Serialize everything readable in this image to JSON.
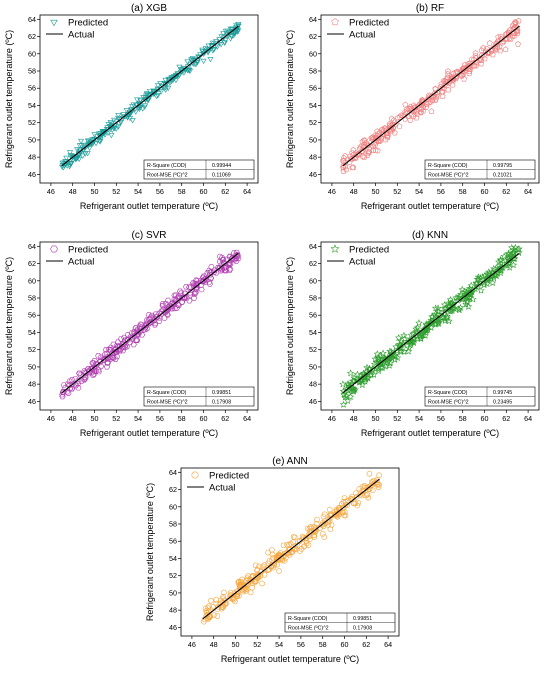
{
  "chart_data": [
    {
      "type": "scatter",
      "title": "(a) XGB",
      "xlabel": "Refrigerant outlet temperature (ºC)",
      "ylabel": "Refrigerant outlet temperature (ºC)",
      "xlim": [
        45,
        65
      ],
      "ylim": [
        45,
        64.5
      ],
      "xticks": [
        46,
        48,
        50,
        52,
        54,
        56,
        58,
        60,
        62,
        64
      ],
      "yticks": [
        46,
        48,
        50,
        52,
        54,
        56,
        58,
        60,
        62,
        64
      ],
      "grid": false,
      "legend_position": "top-left",
      "series": [
        {
          "name": "Predicted",
          "marker": "triangle-down",
          "color": "#1a9c99",
          "x_range": [
            47,
            63.2
          ],
          "spread": 0.35
        },
        {
          "name": "Actual",
          "kind": "line",
          "color": "#000000",
          "x": [
            47,
            63.2
          ],
          "y": [
            47,
            63.2
          ]
        }
      ],
      "stats": [
        {
          "label": "R-Square (COD)",
          "value": "0.99944"
        },
        {
          "label": "Root-MSE (ºC)^2",
          "value": "0.11069"
        }
      ]
    },
    {
      "type": "scatter",
      "title": "(b) RF",
      "xlabel": "Refrigerant outlet temperature (ºC)",
      "ylabel": "Refrigerant outlet temperature (ºC)",
      "xlim": [
        45,
        65
      ],
      "ylim": [
        45,
        64.5
      ],
      "xticks": [
        46,
        48,
        50,
        52,
        54,
        56,
        58,
        60,
        62,
        64
      ],
      "yticks": [
        46,
        48,
        50,
        52,
        54,
        56,
        58,
        60,
        62,
        64
      ],
      "grid": false,
      "legend_position": "top-left",
      "series": [
        {
          "name": "Predicted",
          "marker": "pentagon",
          "color": "#f08080",
          "x_range": [
            47,
            63.2
          ],
          "spread": 0.55
        },
        {
          "name": "Actual",
          "kind": "line",
          "color": "#000000",
          "x": [
            47,
            63.2
          ],
          "y": [
            47,
            63.2
          ]
        }
      ],
      "stats": [
        {
          "label": "R-Square (COD)",
          "value": "0.99795"
        },
        {
          "label": "Root-MSE (ºC)^2",
          "value": "0.21021"
        }
      ]
    },
    {
      "type": "scatter",
      "title": "(c) SVR",
      "xlabel": "Refrigerant outlet temperature (ºC)",
      "ylabel": "Refrigerant outlet temperature (ºC)",
      "xlim": [
        45,
        65
      ],
      "ylim": [
        45,
        64.5
      ],
      "xticks": [
        46,
        48,
        50,
        52,
        54,
        56,
        58,
        60,
        62,
        64
      ],
      "yticks": [
        46,
        48,
        50,
        52,
        54,
        56,
        58,
        60,
        62,
        64
      ],
      "grid": false,
      "legend_position": "top-left",
      "series": [
        {
          "name": "Predicted",
          "marker": "hexagon",
          "color": "#b03fb0",
          "x_range": [
            47,
            63.2
          ],
          "spread": 0.5
        },
        {
          "name": "Actual",
          "kind": "line",
          "color": "#000000",
          "x": [
            47,
            63.2
          ],
          "y": [
            47,
            63.2
          ]
        }
      ],
      "stats": [
        {
          "label": "R-Square (COD)",
          "value": "0.99851"
        },
        {
          "label": "Root-MSE (ºC)^2",
          "value": "0.17908"
        }
      ]
    },
    {
      "type": "scatter",
      "title": "(d) KNN",
      "xlabel": "Refrigerant outlet temperature (ºC)",
      "ylabel": "Refrigerant outlet temperature (ºC)",
      "xlim": [
        45,
        65
      ],
      "ylim": [
        45,
        64.5
      ],
      "xticks": [
        46,
        48,
        50,
        52,
        54,
        56,
        58,
        60,
        62,
        64
      ],
      "yticks": [
        46,
        48,
        50,
        52,
        54,
        56,
        58,
        60,
        62,
        64
      ],
      "grid": false,
      "legend_position": "top-left",
      "series": [
        {
          "name": "Predicted",
          "marker": "star",
          "color": "#2e9e2e",
          "x_range": [
            47,
            63.2
          ],
          "spread": 0.6
        },
        {
          "name": "Actual",
          "kind": "line",
          "color": "#000000",
          "x": [
            47,
            63.2
          ],
          "y": [
            47,
            63.2
          ]
        }
      ],
      "stats": [
        {
          "label": "R-Square (COD)",
          "value": "0.99745"
        },
        {
          "label": "Root-MSE (ºC)^2",
          "value": "0.23495"
        }
      ]
    },
    {
      "type": "scatter",
      "title": "(e) ANN",
      "xlabel": "Refrigerant outlet temperature (ºC)",
      "ylabel": "Refrigerant outlet temperature (ºC)",
      "xlim": [
        45,
        65
      ],
      "ylim": [
        45,
        64.5
      ],
      "xticks": [
        46,
        48,
        50,
        52,
        54,
        56,
        58,
        60,
        62,
        64
      ],
      "yticks": [
        46,
        48,
        50,
        52,
        54,
        56,
        58,
        60,
        62,
        64
      ],
      "grid": false,
      "legend_position": "top-left",
      "series": [
        {
          "name": "Predicted",
          "marker": "circle",
          "color": "#f5a742",
          "x_range": [
            47,
            63.2
          ],
          "spread": 0.5
        },
        {
          "name": "Actual",
          "kind": "line",
          "color": "#000000",
          "x": [
            47,
            63.2
          ],
          "y": [
            47,
            63.2
          ]
        }
      ],
      "stats": [
        {
          "label": "R-Square (COD)",
          "value": "0.99851"
        },
        {
          "label": "Root-MSE (ºC)^2",
          "value": "0.17908"
        }
      ]
    }
  ]
}
